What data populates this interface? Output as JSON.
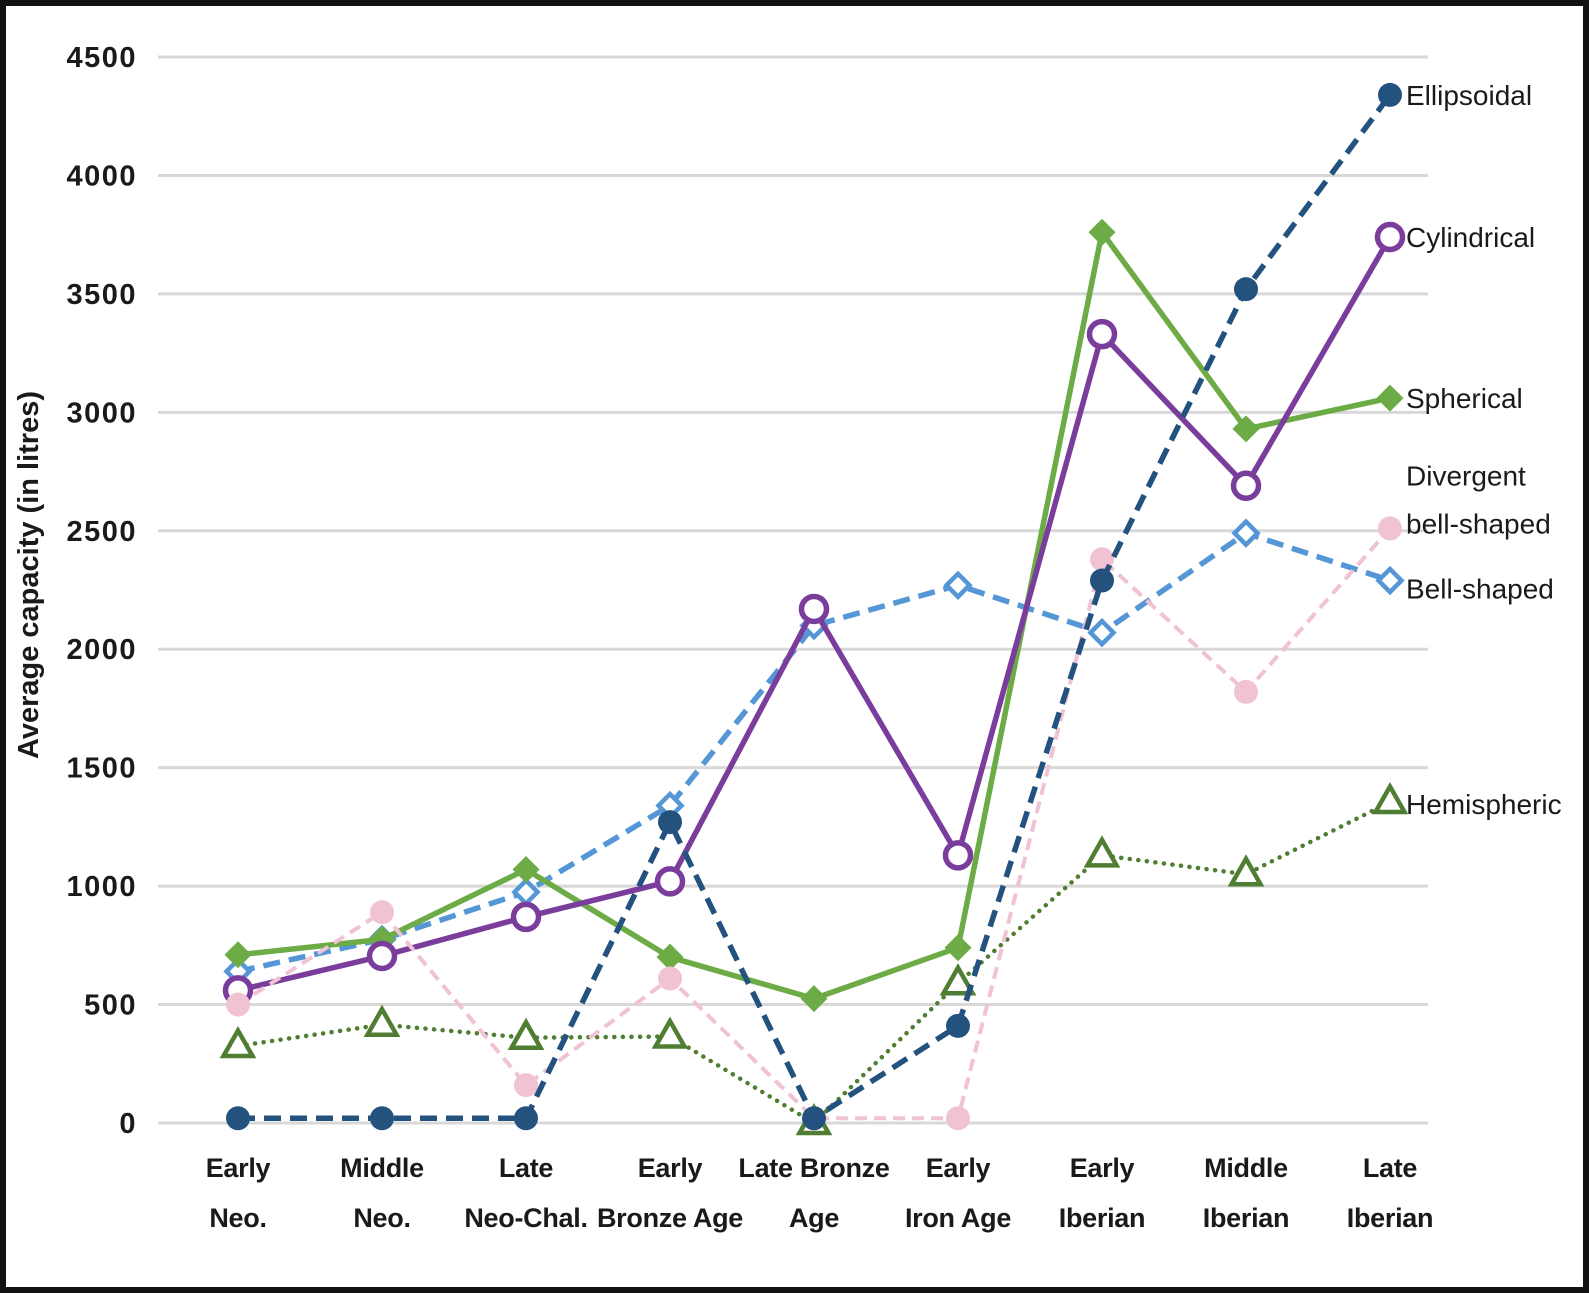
{
  "chart_data": {
    "type": "line",
    "title": "",
    "ylabel": "Average capacity (in litres)",
    "xlabel": "",
    "y_axis": {
      "min": 0,
      "max": 4500,
      "tick_step": 500,
      "tick_labels": [
        "0",
        "500",
        "1000",
        "1500",
        "2000",
        "2500",
        "3000",
        "3500",
        "4000",
        "4500"
      ]
    },
    "grid": "horizontal",
    "legend_position": "right-inline",
    "categories": [
      "Early Neo.",
      "Middle Neo.",
      "Late Neo-Chal.",
      "Early Bronze Age",
      "Late Bronze Age",
      "Early Iron Age",
      "Early Iberian",
      "Middle Iberian",
      "Late Iberian"
    ],
    "category_label_lines": [
      [
        "Early",
        "Neo."
      ],
      [
        "Middle",
        "Neo."
      ],
      [
        "Late",
        "Neo-Chal."
      ],
      [
        "Early",
        "Bronze Age"
      ],
      [
        "Late Bronze",
        "Age"
      ],
      [
        "Early",
        "Iron Age"
      ],
      [
        "Early",
        "Iberian"
      ],
      [
        "Middle",
        "Iberian"
      ],
      [
        "Late",
        "Iberian"
      ]
    ],
    "series": [
      {
        "name": "Ellipsoidal",
        "label_lines": [
          "Ellipsoidal"
        ],
        "color": "#24527e",
        "marker": "filled-circle",
        "line_style": "dashed",
        "values": [
          20,
          20,
          20,
          1270,
          20,
          410,
          2290,
          3520,
          4340
        ]
      },
      {
        "name": "Cylindrical",
        "label_lines": [
          "Cylindrical"
        ],
        "color": "#7a3d9c",
        "marker": "open-circle",
        "line_style": "solid",
        "values": [
          560,
          705,
          870,
          1020,
          2170,
          1130,
          3330,
          2690,
          3740
        ]
      },
      {
        "name": "Spherical",
        "label_lines": [
          "Spherical"
        ],
        "color": "#6cab45",
        "marker": "filled-diamond",
        "line_style": "solid",
        "values": [
          710,
          775,
          1070,
          700,
          525,
          740,
          3760,
          2930,
          3060
        ]
      },
      {
        "name": "Divergent bell-shaped",
        "label_lines": [
          "Divergent",
          "bell-shaped"
        ],
        "color": "#f0c2d3",
        "marker": "filled-circle",
        "line_style": "dashed-short",
        "values": [
          500,
          890,
          160,
          610,
          20,
          20,
          2380,
          1820,
          2510
        ]
      },
      {
        "name": "Bell-shaped",
        "label_lines": [
          "Bell-shaped"
        ],
        "color": "#5597d6",
        "marker": "open-diamond",
        "line_style": "dashed",
        "values": [
          640,
          775,
          975,
          1340,
          2100,
          2270,
          2070,
          2490,
          2290
        ]
      },
      {
        "name": "Hemispheric",
        "label_lines": [
          "Hemispheric"
        ],
        "color": "#4f7d31",
        "marker": "open-triangle",
        "line_style": "dotted",
        "values": [
          325,
          415,
          360,
          365,
          0,
          590,
          1130,
          1050,
          1355
        ]
      }
    ]
  }
}
